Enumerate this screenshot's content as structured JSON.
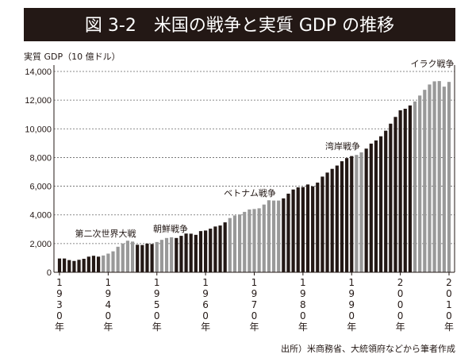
{
  "chart_data": {
    "type": "bar",
    "title": "図 3-2　米国の戦争と実質 GDP の推移",
    "ylabel": "実質 GDP（10 億ドル）",
    "xlabel": "",
    "source": "出所）米商務省、大統領府などから筆者作成",
    "ylim": [
      0,
      14000
    ],
    "yticks": [
      0,
      2000,
      4000,
      6000,
      8000,
      10000,
      12000,
      14000
    ],
    "ytick_labels": [
      "0",
      "2,000",
      "4,000",
      "6,000",
      "8,000",
      "10,000",
      "12,000",
      "14,000"
    ],
    "grid": "horizontal dashed",
    "xticks": [
      1930,
      1940,
      1950,
      1960,
      1970,
      1980,
      1990,
      2000,
      2010
    ],
    "xtick_suffix": "年",
    "colors": {
      "peace": "#231815",
      "war": "#999999",
      "title_bg": "#231815"
    },
    "war_periods": [
      {
        "label": "第二次世界大戦",
        "start": 1939,
        "end": 1945
      },
      {
        "label": "朝鮮戦争",
        "start": 1950,
        "end": 1953
      },
      {
        "label": "ベトナム戦争",
        "start": 1965,
        "end": 1975
      },
      {
        "label": "湾岸戦争",
        "start": 1991,
        "end": 1992
      },
      {
        "label": "イラク戦争",
        "start": 2003,
        "end": 2010
      }
    ],
    "x": [
      1930,
      1931,
      1932,
      1933,
      1934,
      1935,
      1936,
      1937,
      1938,
      1939,
      1940,
      1941,
      1942,
      1943,
      1944,
      1945,
      1946,
      1947,
      1948,
      1949,
      1950,
      1951,
      1952,
      1953,
      1954,
      1955,
      1956,
      1957,
      1958,
      1959,
      1960,
      1961,
      1962,
      1963,
      1964,
      1965,
      1966,
      1967,
      1968,
      1969,
      1970,
      1971,
      1972,
      1973,
      1974,
      1975,
      1976,
      1977,
      1978,
      1979,
      1980,
      1981,
      1982,
      1983,
      1984,
      1985,
      1986,
      1987,
      1988,
      1989,
      1990,
      1991,
      1992,
      1993,
      1994,
      1995,
      1996,
      1997,
      1998,
      1999,
      2000,
      2001,
      2002,
      2003,
      2004,
      2005,
      2006,
      2007,
      2008,
      2009,
      2010
    ],
    "values": [
      960,
      960,
      850,
      790,
      870,
      940,
      1090,
      1150,
      1090,
      1170,
      1300,
      1460,
      1780,
      2010,
      2200,
      2140,
      1920,
      1900,
      2000,
      1970,
      2110,
      2260,
      2390,
      2440,
      2390,
      2540,
      2700,
      2690,
      2610,
      2870,
      2910,
      3040,
      3190,
      3260,
      3480,
      3780,
      3960,
      4030,
      4210,
      4380,
      4410,
      4460,
      4720,
      5020,
      5000,
      5000,
      5150,
      5480,
      5770,
      5920,
      5940,
      6120,
      5990,
      6250,
      6670,
      6950,
      7210,
      7440,
      7740,
      7960,
      8100,
      8180,
      8360,
      8620,
      8970,
      9190,
      9480,
      9870,
      10360,
      10830,
      11290,
      11400,
      11630,
      11910,
      12320,
      12720,
      13090,
      13310,
      13330,
      12940,
      13270
    ]
  }
}
